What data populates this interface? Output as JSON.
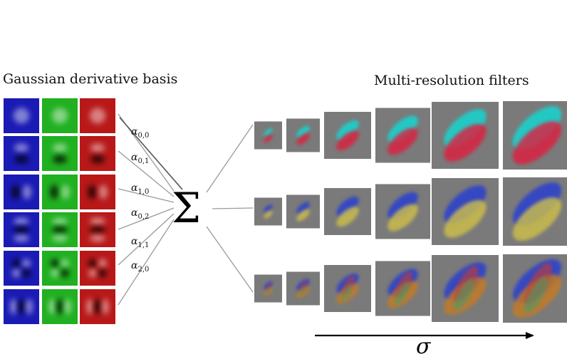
{
  "titles": {
    "basis": "Gaussian derivative basis",
    "filters": "Multi-resolution filters"
  },
  "alphas": [
    {
      "symbol": "α",
      "sub": "0,0"
    },
    {
      "symbol": "α",
      "sub": "0,1"
    },
    {
      "symbol": "α",
      "sub": "1,0"
    },
    {
      "symbol": "α",
      "sub": "0,2"
    },
    {
      "symbol": "α",
      "sub": "1,1"
    },
    {
      "symbol": "α",
      "sub": "2,0"
    }
  ],
  "sum_symbol": "Σ",
  "axis_label": "σ",
  "colors": {
    "channel_blue": "#1a1ab4",
    "channel_green": "#20b020",
    "channel_red": "#b81818",
    "filter_bg": "#7a7a7a",
    "cyan": "#19d6d0",
    "magenta_red": "#e01d3c",
    "blue": "#2b3fcf",
    "yellow": "#cfc04a",
    "orange": "#c87a22"
  },
  "basis_icons": [
    "gaussian-g00",
    "derivative-g01",
    "derivative-g10",
    "derivative-g02",
    "derivative-g11",
    "derivative-g20"
  ],
  "filter_rows": [
    {
      "name": "cyan-red-filter",
      "scales": 6
    },
    {
      "name": "blue-yellow-filter",
      "scales": 6
    },
    {
      "name": "multicolor-filter",
      "scales": 6
    }
  ]
}
